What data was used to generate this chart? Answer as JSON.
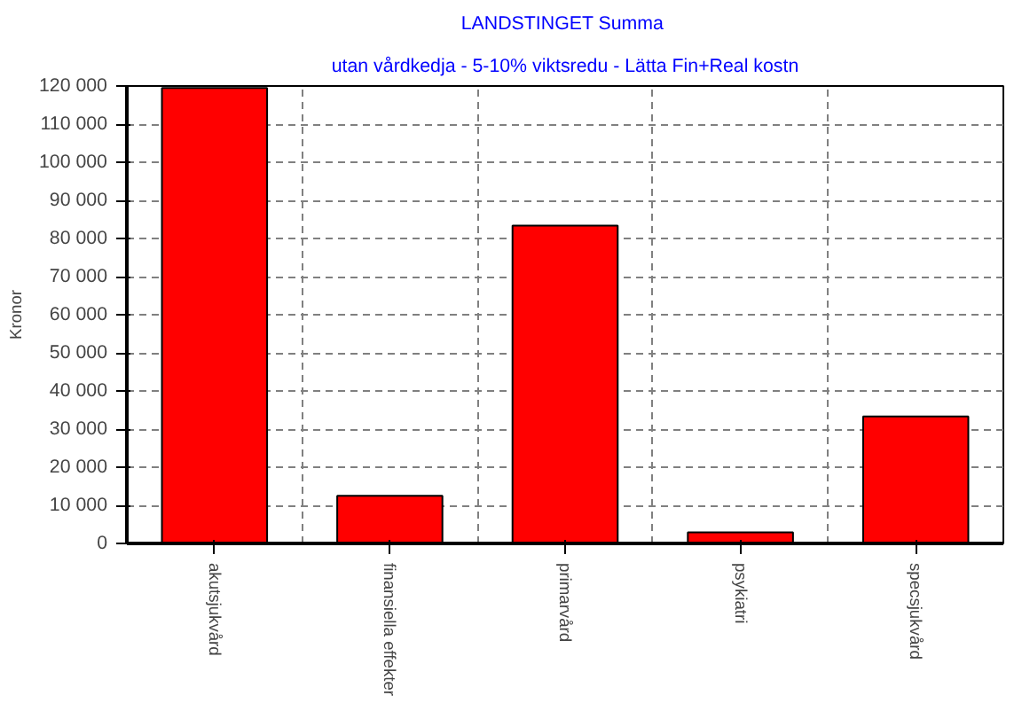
{
  "chart_data": {
    "type": "bar",
    "title": "LANDSTINGET  Summa",
    "subtitle": "utan vårdkedja - 5-10% viktsredu - Lätta Fin+Real kostn",
    "ylabel": "Kronor",
    "categories": [
      "akutsjukvård",
      "finansiella effekter",
      "primarvård",
      "psykiatri",
      "specsjukvård"
    ],
    "values": [
      119500,
      12500,
      83400,
      2900,
      33300
    ],
    "color": "#ff0000",
    "ylim": [
      0,
      120000
    ],
    "yticks": [
      {
        "value": 0,
        "label": "0"
      },
      {
        "value": 10000,
        "label": "10 000"
      },
      {
        "value": 20000,
        "label": "20 000"
      },
      {
        "value": 30000,
        "label": "30 000"
      },
      {
        "value": 40000,
        "label": "40 000"
      },
      {
        "value": 50000,
        "label": "50 000"
      },
      {
        "value": 60000,
        "label": "60 000"
      },
      {
        "value": 70000,
        "label": "70 000"
      },
      {
        "value": 80000,
        "label": "80 000"
      },
      {
        "value": 90000,
        "label": "90 000"
      },
      {
        "value": 100000,
        "label": "100 000"
      },
      {
        "value": 110000,
        "label": "110 000"
      },
      {
        "value": 120000,
        "label": "120 000"
      }
    ],
    "grid": true
  }
}
